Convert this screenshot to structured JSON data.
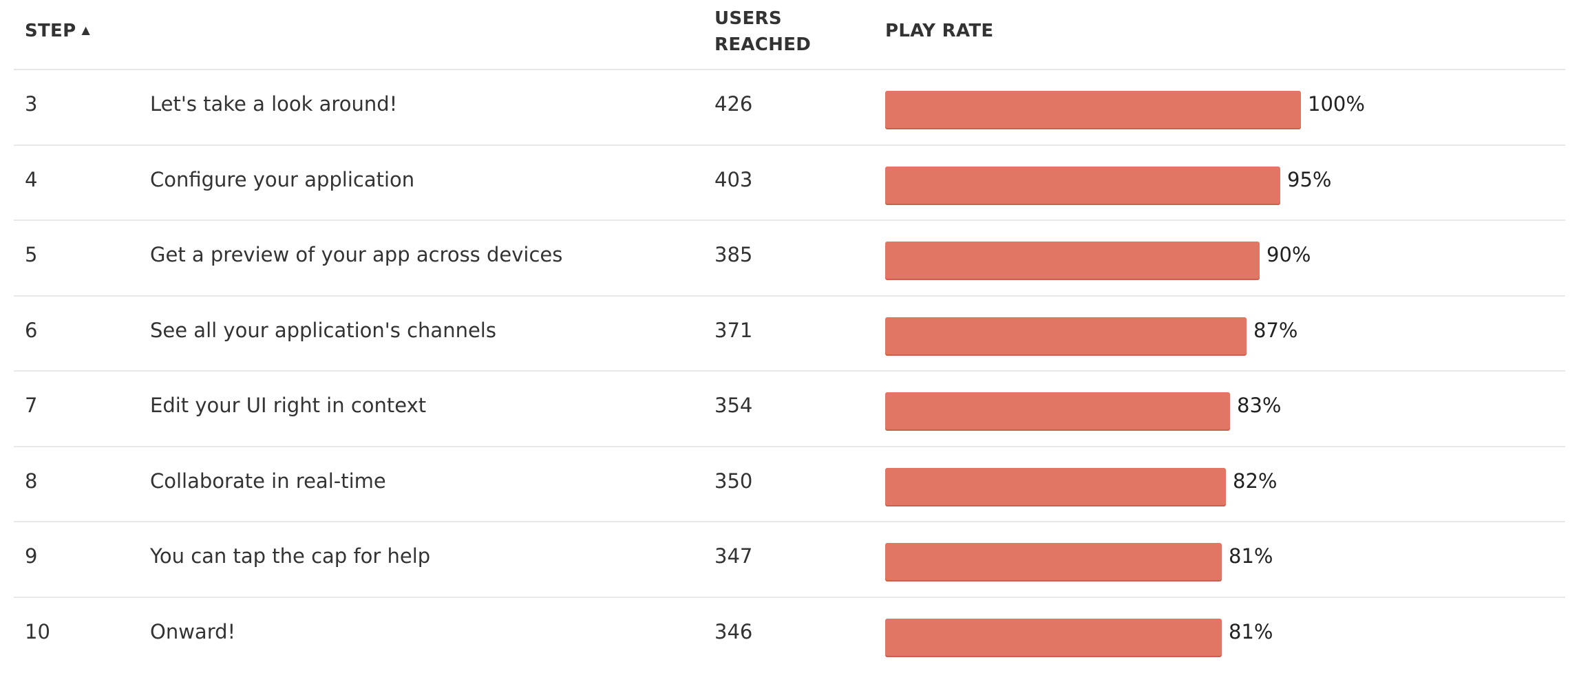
{
  "table": {
    "columns": {
      "step": "STEP",
      "users_line1": "USERS",
      "users_line2": "REACHED",
      "play_rate": "PLAY RATE"
    },
    "sort": {
      "column": "step",
      "direction": "ascending",
      "icon": "sort-ascending-icon",
      "glyph": "▲"
    },
    "bar_color": "#e27664",
    "rows": [
      {
        "step": "3",
        "name": "Let's take a look around!",
        "users": "426",
        "rate": 1.0,
        "rate_label": "100%"
      },
      {
        "step": "4",
        "name": "Configure your application",
        "users": "403",
        "rate": 0.95,
        "rate_label": "95%"
      },
      {
        "step": "5",
        "name": "Get a preview of your app across devices",
        "users": "385",
        "rate": 0.9,
        "rate_label": "90%"
      },
      {
        "step": "6",
        "name": "See all your application's channels",
        "users": "371",
        "rate": 0.87,
        "rate_label": "87%"
      },
      {
        "step": "7",
        "name": "Edit your UI right in context",
        "users": "354",
        "rate": 0.83,
        "rate_label": "83%"
      },
      {
        "step": "8",
        "name": "Collaborate in real-time",
        "users": "350",
        "rate": 0.82,
        "rate_label": "82%"
      },
      {
        "step": "9",
        "name": "You can tap the cap for help",
        "users": "347",
        "rate": 0.81,
        "rate_label": "81%"
      },
      {
        "step": "10",
        "name": "Onward!",
        "users": "346",
        "rate": 0.81,
        "rate_label": "81%"
      }
    ]
  }
}
